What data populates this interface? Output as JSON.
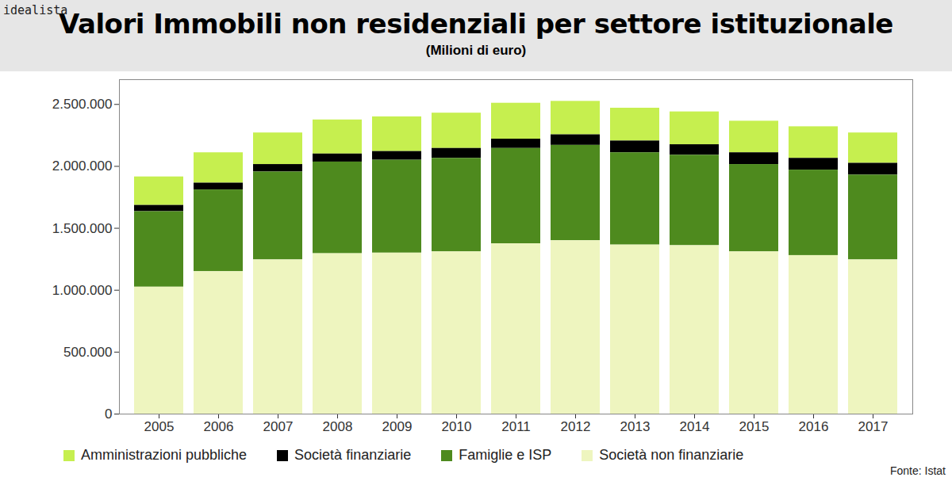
{
  "chart_data": {
    "type": "bar",
    "title": "Valori Immobili non residenziali per settore istituzionale",
    "subtitle": "(Milioni di euro)",
    "source": "Fonte: Istat",
    "annotations": [
      "idealista"
    ],
    "stacked": true,
    "legend": "bottom",
    "grid": false,
    "categories": [
      "2005",
      "2006",
      "2007",
      "2008",
      "2009",
      "2010",
      "2011",
      "2012",
      "2013",
      "2014",
      "2015",
      "2016",
      "2017"
    ],
    "series": [
      {
        "name": "Amministrazioni pubbliche",
        "color": "#c6ef4f",
        "values": [
          230000,
          245000,
          255000,
          275000,
          280000,
          285000,
          290000,
          270000,
          265000,
          265000,
          255000,
          255000,
          245000
        ]
      },
      {
        "name": "Società finanziarie",
        "color": "#000000",
        "values": [
          50000,
          55000,
          60000,
          65000,
          70000,
          80000,
          75000,
          85000,
          95000,
          85000,
          95000,
          95000,
          95000
        ]
      },
      {
        "name": "Famiglie e ISP",
        "color": "#4e8a1e",
        "values": [
          610000,
          660000,
          710000,
          740000,
          750000,
          755000,
          770000,
          770000,
          745000,
          730000,
          705000,
          690000,
          685000
        ]
      },
      {
        "name": "Società non finanziarie",
        "color": "#eef5bf",
        "values": [
          1025000,
          1150000,
          1245000,
          1295000,
          1300000,
          1310000,
          1375000,
          1400000,
          1365000,
          1360000,
          1310000,
          1280000,
          1245000
        ]
      }
    ],
    "ylim": [
      0,
      2700000
    ],
    "yticks": [
      0,
      {
        "value": 500000,
        "label": "500.000"
      },
      {
        "value": 1000000,
        "label": "1.000.000"
      },
      {
        "value": 1500000,
        "label": "1.500.000"
      },
      {
        "value": 2000000,
        "label": "2.000.000"
      },
      {
        "value": 2500000,
        "label": "2.500.000"
      }
    ]
  }
}
